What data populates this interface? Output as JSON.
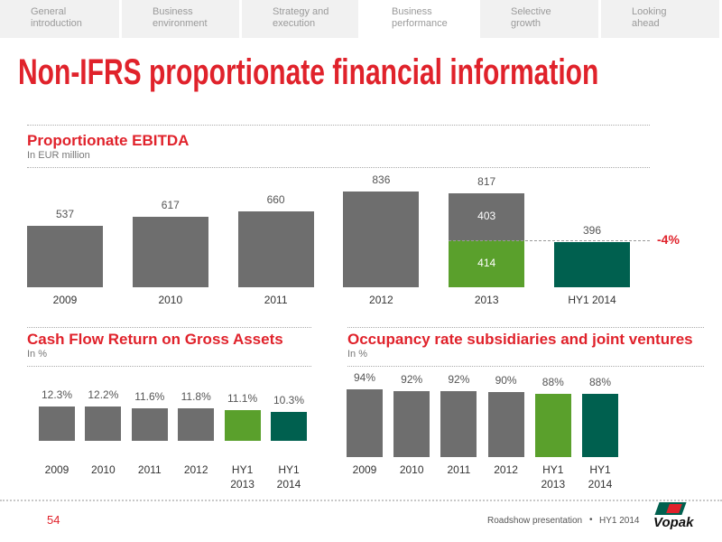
{
  "nav": {
    "tabs": [
      "General\nintroduction",
      "Business\nenvironment",
      "Strategy and\nexecution",
      "Business\nperformance",
      "Selective\ngrowth",
      "Looking\nahead"
    ],
    "active": 3
  },
  "title": "Non-IFRS proportionate financial information",
  "chart_data": [
    {
      "type": "bar",
      "stacked": true,
      "title": "Proportionate EBITDA",
      "subtitle": "In EUR million",
      "categories": [
        "2009",
        "2010",
        "2011",
        "2012",
        "2013",
        "HY1 2014"
      ],
      "series": [
        {
          "colors": [
            "#6e6e6e",
            "#6e6e6e",
            "#6e6e6e",
            "#6e6e6e",
            "#5aa02c",
            "#00604f"
          ],
          "values": [
            537,
            617,
            660,
            836,
            414,
            396
          ]
        },
        {
          "color": "#6e6e6e",
          "values": [
            null,
            null,
            null,
            null,
            403,
            null
          ]
        }
      ],
      "totals": [
        null,
        null,
        null,
        null,
        817,
        null
      ],
      "annotation": "-4%"
    },
    {
      "type": "bar",
      "title": "Cash Flow Return on Gross Assets",
      "subtitle": "In %",
      "categories": [
        "2009",
        "2010",
        "2011",
        "2012",
        "HY1 2013",
        "HY1 2014"
      ],
      "series": [
        {
          "colors": [
            "#6e6e6e",
            "#6e6e6e",
            "#6e6e6e",
            "#6e6e6e",
            "#5aa02c",
            "#00604f"
          ],
          "values": [
            12.3,
            12.2,
            11.6,
            11.8,
            11.1,
            10.3
          ],
          "value_labels": [
            "12.3%",
            "12.2%",
            "11.6%",
            "11.8%",
            "11.1%",
            "10.3%"
          ]
        }
      ]
    },
    {
      "type": "bar",
      "title": "Occupancy rate subsidiaries and joint ventures",
      "subtitle": "In %",
      "categories": [
        "2009",
        "2010",
        "2011",
        "2012",
        "HY1 2013",
        "HY1 2014"
      ],
      "series": [
        {
          "colors": [
            "#6e6e6e",
            "#6e6e6e",
            "#6e6e6e",
            "#6e6e6e",
            "#5aa02c",
            "#00604f"
          ],
          "values": [
            94,
            92,
            92,
            90,
            88,
            88
          ],
          "value_labels": [
            "94%",
            "92%",
            "92%",
            "90%",
            "88%",
            "88%"
          ]
        }
      ]
    }
  ],
  "footer": {
    "page": "54",
    "presentation": "Roadshow presentation",
    "period": "HY1 2014",
    "logo": "Vopak"
  }
}
